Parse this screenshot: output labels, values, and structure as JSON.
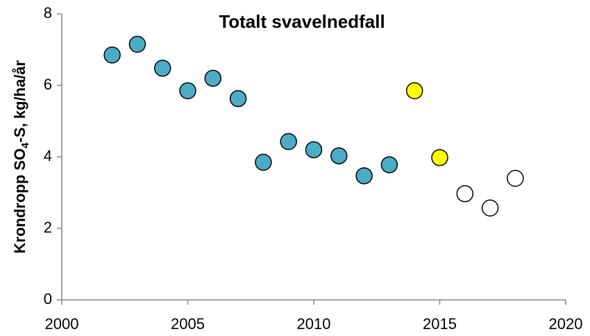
{
  "chart_data": {
    "type": "scatter",
    "title": "Totalt svavelnedfall",
    "ylabel": [
      "Krondropp SO",
      "4",
      "-S, kg/ha/år"
    ],
    "xlim": [
      2000,
      2020
    ],
    "xticks": [
      2000,
      2005,
      2010,
      2015,
      2020
    ],
    "ylim": [
      0,
      8
    ],
    "yticks": [
      0,
      2,
      4,
      6,
      8
    ],
    "series": [
      {
        "color": "#4bacc6",
        "x": [
          2002,
          2003,
          2004,
          2005,
          2006,
          2007,
          2008,
          2009,
          2010,
          2011,
          2012,
          2013
        ],
        "values": [
          6.85,
          7.15,
          6.48,
          5.85,
          6.2,
          5.63,
          3.85,
          4.43,
          4.2,
          4.03,
          3.47,
          3.78
        ]
      },
      {
        "color": "#ffff00",
        "x": [
          2014,
          2015
        ],
        "values": [
          5.85,
          3.98
        ]
      },
      {
        "color": "#ffffff",
        "x": [
          2016,
          2017,
          2018
        ],
        "values": [
          2.97,
          2.57,
          3.4
        ]
      }
    ]
  }
}
